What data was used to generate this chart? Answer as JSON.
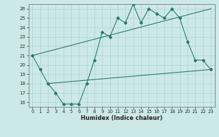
{
  "xlabel": "Humidex (Indice chaleur)",
  "ylabel": "",
  "bg_color": "#cce8e8",
  "grid_color": "#aad4d4",
  "line_color": "#2a7a6a",
  "xlim": [
    -0.5,
    23.5
  ],
  "ylim": [
    15.5,
    26.5
  ],
  "xticks": [
    0,
    1,
    2,
    3,
    4,
    5,
    6,
    7,
    8,
    9,
    10,
    11,
    12,
    13,
    14,
    15,
    16,
    17,
    18,
    19,
    20,
    21,
    22,
    23
  ],
  "yticks": [
    16,
    17,
    18,
    19,
    20,
    21,
    22,
    23,
    24,
    25,
    26
  ],
  "line1_x": [
    0,
    1,
    2,
    3,
    4,
    5,
    6,
    7,
    8,
    9,
    10,
    11,
    12,
    13,
    14,
    15,
    16,
    17,
    18,
    19,
    20,
    21,
    22,
    23
  ],
  "line1_y": [
    21.0,
    19.5,
    18.0,
    17.0,
    15.8,
    15.8,
    15.8,
    18.0,
    20.5,
    23.5,
    23.0,
    25.0,
    24.5,
    26.5,
    24.5,
    26.0,
    25.5,
    25.0,
    26.0,
    25.0,
    22.5,
    20.5,
    20.5,
    19.5
  ],
  "line2_x": [
    0,
    23
  ],
  "line2_y": [
    21.0,
    26.0
  ],
  "line3_x": [
    2,
    23
  ],
  "line3_y": [
    18.0,
    19.5
  ],
  "tick_fontsize": 5.0,
  "xlabel_fontsize": 6.0,
  "lw": 0.8,
  "ms": 2.0
}
